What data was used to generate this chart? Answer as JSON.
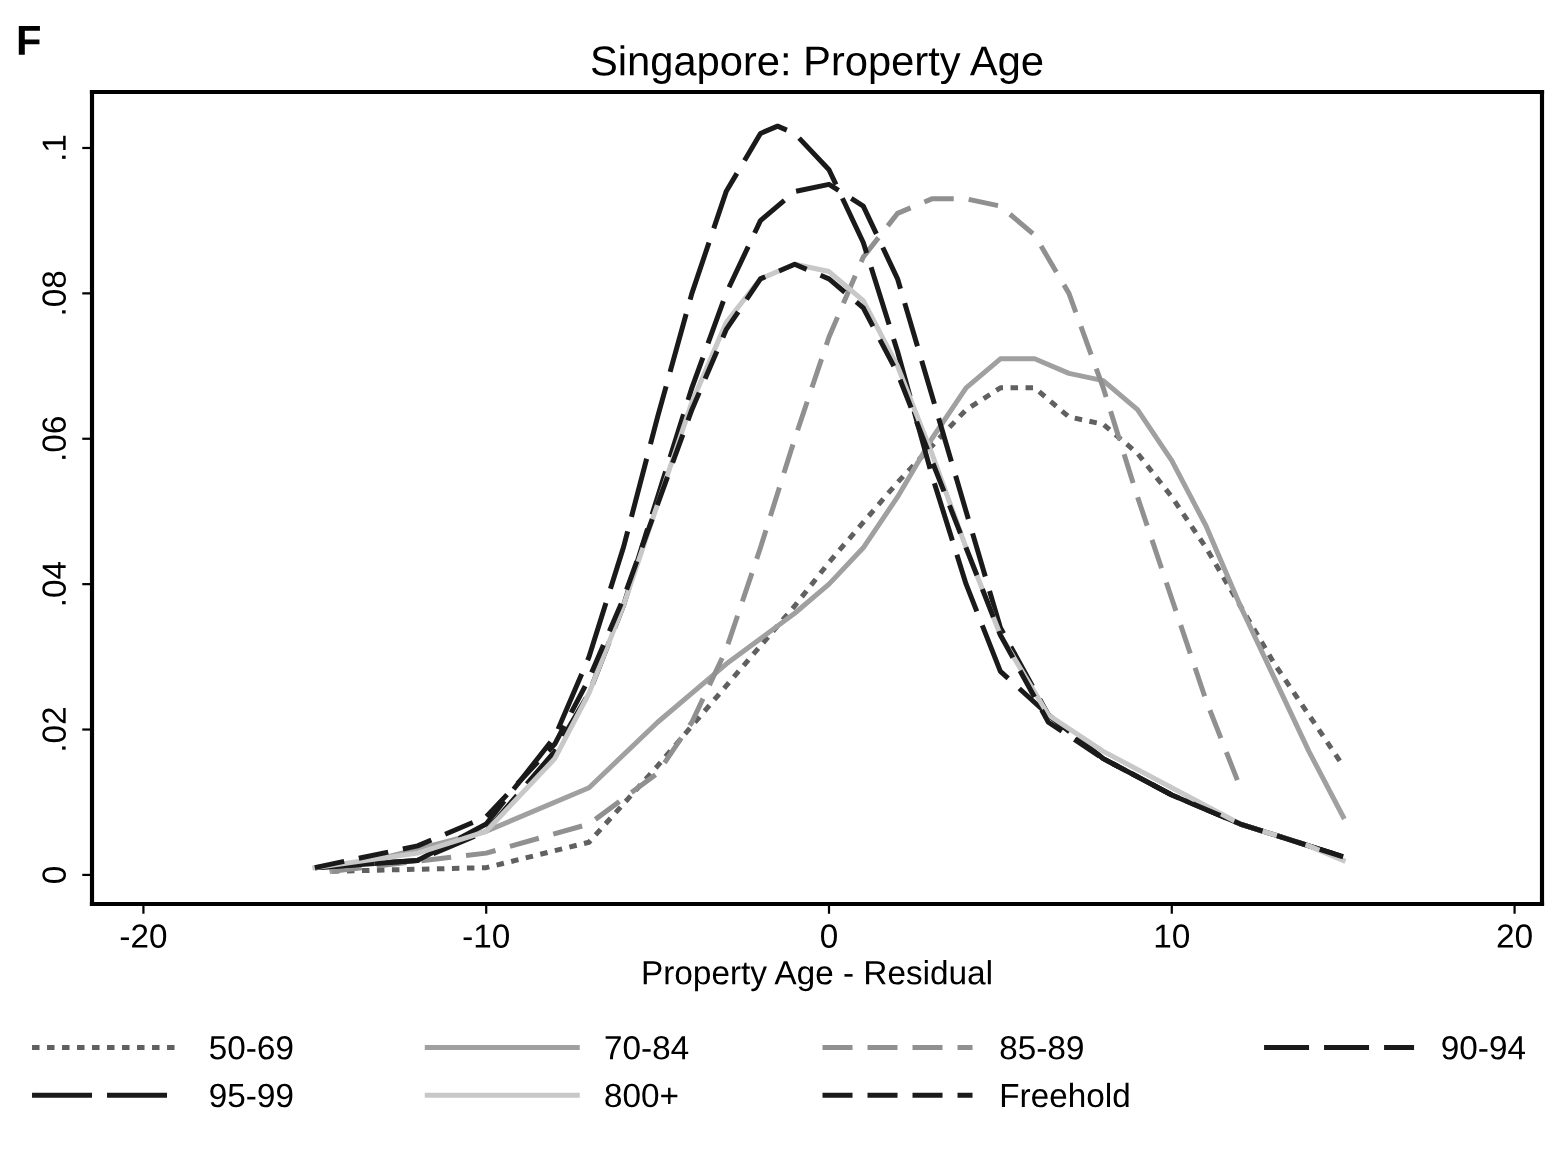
{
  "chart_data": {
    "type": "line",
    "title": "Singapore: Property Age",
    "xlabel": "Property Age - Residual",
    "annotations": [
      "F"
    ],
    "xlim": [
      -21.5,
      20.8
    ],
    "ylim": [
      -0.004,
      0.1077
    ],
    "xticks": [
      -20,
      -10,
      0,
      10,
      20
    ],
    "yticks": [
      {
        "value": 0,
        "label": "0"
      },
      {
        "value": 0.02,
        "label": ".02"
      },
      {
        "value": 0.04,
        "label": ".04"
      },
      {
        "value": 0.06,
        "label": ".06"
      },
      {
        "value": 0.08,
        "label": ".08"
      },
      {
        "value": 0.1,
        "label": ".1"
      }
    ],
    "grid": false,
    "legend": "bottom",
    "marker": "none",
    "series": [
      {
        "name": "50-69",
        "color": "#606060",
        "line_style": "dotted",
        "x": [
          -14.5,
          -10,
          -7,
          -5,
          -3,
          -1,
          0,
          2,
          4,
          5,
          6,
          7,
          8,
          9,
          10,
          11,
          12,
          13,
          14,
          15
        ],
        "values": [
          0.0005,
          0.001,
          0.0045,
          0.015,
          0.026,
          0.037,
          0.043,
          0.054,
          0.064,
          0.067,
          0.067,
          0.063,
          0.062,
          0.058,
          0.052,
          0.045,
          0.037,
          0.029,
          0.022,
          0.015
        ]
      },
      {
        "name": "70-84",
        "color": "#a0a0a0",
        "line_style": "solid",
        "x": [
          -14.5,
          -10,
          -7,
          -5,
          -3,
          -1,
          0,
          1,
          2,
          3,
          4,
          5,
          6,
          7,
          8,
          9,
          10,
          11,
          12,
          13,
          14,
          15
        ],
        "values": [
          0.0005,
          0.006,
          0.012,
          0.021,
          0.029,
          0.036,
          0.04,
          0.045,
          0.052,
          0.06,
          0.067,
          0.071,
          0.071,
          0.069,
          0.068,
          0.064,
          0.057,
          0.048,
          0.037,
          0.027,
          0.017,
          0.008
        ]
      },
      {
        "name": "85-89",
        "color": "#909090",
        "line_style": "dashed",
        "x": [
          -14.5,
          -10,
          -7,
          -5,
          -4,
          -3,
          -2,
          -1,
          0,
          1,
          2,
          3,
          4,
          5,
          6,
          7,
          8,
          9,
          10,
          11,
          12
        ],
        "values": [
          0.0005,
          0.003,
          0.007,
          0.014,
          0.021,
          0.031,
          0.045,
          0.06,
          0.074,
          0.085,
          0.091,
          0.093,
          0.093,
          0.092,
          0.088,
          0.08,
          0.067,
          0.052,
          0.038,
          0.024,
          0.012
        ]
      },
      {
        "name": "90-94",
        "color": "#1a1a1a",
        "line_style": "dashed",
        "x": [
          -15,
          -12,
          -10,
          -8,
          -7,
          -6,
          -5,
          -4,
          -3,
          -2,
          -1,
          0,
          1,
          2,
          3,
          4,
          5,
          6.4,
          8,
          10,
          12,
          14,
          15
        ],
        "values": [
          0.001,
          0.002,
          0.006,
          0.017,
          0.025,
          0.037,
          0.052,
          0.067,
          0.08,
          0.09,
          0.094,
          0.095,
          0.092,
          0.082,
          0.066,
          0.05,
          0.034,
          0.022,
          0.016,
          0.011,
          0.007,
          0.004,
          0.0025
        ]
      },
      {
        "name": "95-99",
        "color": "#1a1a1a",
        "line_style": "dashed",
        "x": [
          -15,
          -12,
          -10,
          -8,
          -7,
          -6,
          -5,
          -4,
          -3,
          -2,
          -1.5,
          -1,
          0,
          1,
          2,
          3,
          4,
          5,
          6.4,
          8,
          10,
          12,
          14,
          15
        ],
        "values": [
          0.001,
          0.002,
          0.007,
          0.019,
          0.03,
          0.045,
          0.063,
          0.08,
          0.094,
          0.102,
          0.103,
          0.102,
          0.097,
          0.087,
          0.072,
          0.055,
          0.04,
          0.028,
          0.022,
          0.016,
          0.011,
          0.007,
          0.004,
          0.0025
        ]
      },
      {
        "name": "800+",
        "color": "#c8c8c8",
        "line_style": "solid",
        "x": [
          -15,
          -12,
          -10,
          -8,
          -7,
          -6,
          -5,
          -4,
          -3,
          -2,
          -1,
          0,
          1,
          2,
          3,
          4,
          5,
          6.4,
          8,
          10,
          12,
          14,
          15
        ],
        "values": [
          0.001,
          0.003,
          0.006,
          0.016,
          0.025,
          0.037,
          0.051,
          0.065,
          0.076,
          0.082,
          0.084,
          0.083,
          0.079,
          0.07,
          0.058,
          0.045,
          0.033,
          0.022,
          0.017,
          0.012,
          0.007,
          0.004,
          0.002
        ]
      },
      {
        "name": "Freehold",
        "color": "#1a1a1a",
        "line_style": "dashed",
        "x": [
          -15,
          -12,
          -10,
          -8,
          -7,
          -6,
          -5,
          -4,
          -3,
          -2,
          -1,
          0,
          1,
          2,
          3,
          4,
          5,
          6.4,
          8,
          10,
          12,
          14,
          15
        ],
        "values": [
          0.001,
          0.004,
          0.008,
          0.018,
          0.027,
          0.038,
          0.051,
          0.064,
          0.075,
          0.082,
          0.084,
          0.082,
          0.078,
          0.069,
          0.057,
          0.045,
          0.033,
          0.021,
          0.016,
          0.011,
          0.007,
          0.004,
          0.0025
        ]
      }
    ]
  }
}
